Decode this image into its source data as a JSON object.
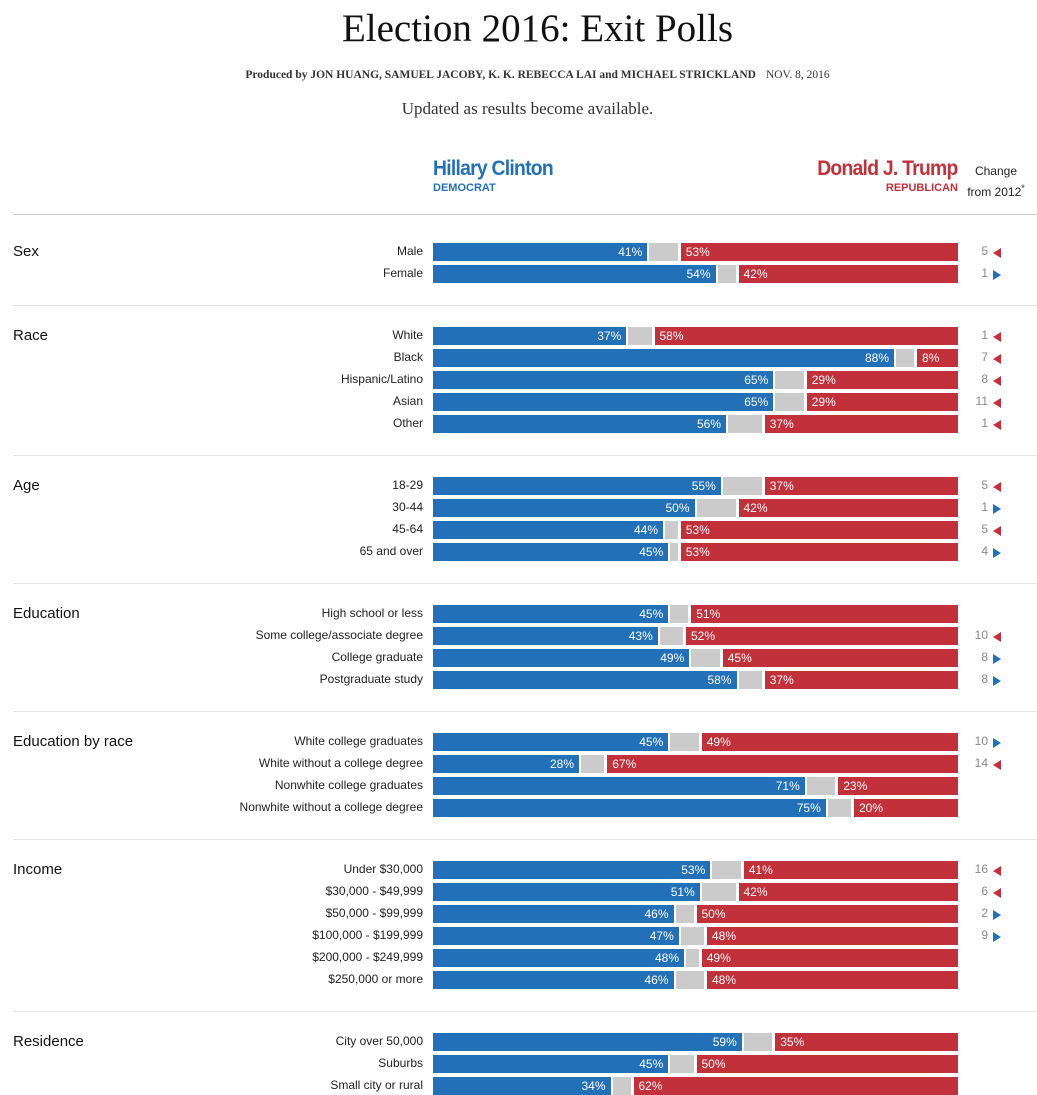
{
  "header": {
    "title": "Election 2016: Exit Polls",
    "byline": "Produced by JON HUANG, SAMUEL JACOBY, K. K. REBECCA LAI and MICHAEL STRICKLAND",
    "date": "NOV. 8, 2016",
    "updated": "Updated as results become available."
  },
  "candidates": {
    "dem_name": "Hillary Clinton",
    "dem_party": "DEMOCRAT",
    "rep_name": "Donald J. Trump",
    "rep_party": "REPUBLICAN",
    "change_line1": "Change",
    "change_line2": "from 2012",
    "change_mark": "*"
  },
  "colors": {
    "democrat": "#2270b8",
    "republican": "#c2303a",
    "other": "#cbcbcb"
  },
  "chart_data": {
    "type": "bar",
    "stacked": true,
    "series_colors": {
      "democrat": "#2270b8",
      "other": "#cbcbcb",
      "republican": "#c2303a"
    },
    "change_direction_legend": {
      "left": "toward Republican (red left arrow)",
      "right": "toward Democrat (blue right arrow)"
    },
    "sections": [
      {
        "title": "Sex",
        "rows": [
          {
            "label": "Male",
            "dem": 41,
            "rep": 53,
            "change": 5,
            "dir": "left"
          },
          {
            "label": "Female",
            "dem": 54,
            "rep": 42,
            "change": 1,
            "dir": "right"
          }
        ]
      },
      {
        "title": "Race",
        "rows": [
          {
            "label": "White",
            "dem": 37,
            "rep": 58,
            "change": 1,
            "dir": "left"
          },
          {
            "label": "Black",
            "dem": 88,
            "rep": 8,
            "change": 7,
            "dir": "left"
          },
          {
            "label": "Hispanic/Latino",
            "dem": 65,
            "rep": 29,
            "change": 8,
            "dir": "left"
          },
          {
            "label": "Asian",
            "dem": 65,
            "rep": 29,
            "change": 11,
            "dir": "left"
          },
          {
            "label": "Other",
            "dem": 56,
            "rep": 37,
            "change": 1,
            "dir": "left"
          }
        ]
      },
      {
        "title": "Age",
        "rows": [
          {
            "label": "18-29",
            "dem": 55,
            "rep": 37,
            "change": 5,
            "dir": "left"
          },
          {
            "label": "30-44",
            "dem": 50,
            "rep": 42,
            "change": 1,
            "dir": "right"
          },
          {
            "label": "45-64",
            "dem": 44,
            "rep": 53,
            "change": 5,
            "dir": "left"
          },
          {
            "label": "65 and over",
            "dem": 45,
            "rep": 53,
            "change": 4,
            "dir": "right"
          }
        ]
      },
      {
        "title": "Education",
        "rows": [
          {
            "label": "High school or less",
            "dem": 45,
            "rep": 51,
            "change": null,
            "dir": null
          },
          {
            "label": "Some college/associate degree",
            "dem": 43,
            "rep": 52,
            "change": 10,
            "dir": "left"
          },
          {
            "label": "College graduate",
            "dem": 49,
            "rep": 45,
            "change": 8,
            "dir": "right"
          },
          {
            "label": "Postgraduate study",
            "dem": 58,
            "rep": 37,
            "change": 8,
            "dir": "right"
          }
        ]
      },
      {
        "title": "Education by race",
        "rows": [
          {
            "label": "White college graduates",
            "dem": 45,
            "rep": 49,
            "change": 10,
            "dir": "right"
          },
          {
            "label": "White without a college degree",
            "dem": 28,
            "rep": 67,
            "change": 14,
            "dir": "left"
          },
          {
            "label": "Nonwhite college graduates",
            "dem": 71,
            "rep": 23,
            "change": null,
            "dir": null
          },
          {
            "label": "Nonwhite without a college degree",
            "dem": 75,
            "rep": 20,
            "change": null,
            "dir": null
          }
        ]
      },
      {
        "title": "Income",
        "rows": [
          {
            "label": "Under $30,000",
            "dem": 53,
            "rep": 41,
            "change": 16,
            "dir": "left"
          },
          {
            "label": "$30,000 - $49,999",
            "dem": 51,
            "rep": 42,
            "change": 6,
            "dir": "left"
          },
          {
            "label": "$50,000 - $99,999",
            "dem": 46,
            "rep": 50,
            "change": 2,
            "dir": "right"
          },
          {
            "label": "$100,000 - $199,999",
            "dem": 47,
            "rep": 48,
            "change": 9,
            "dir": "right"
          },
          {
            "label": "$200,000 - $249,999",
            "dem": 48,
            "rep": 49,
            "change": null,
            "dir": null
          },
          {
            "label": "$250,000 or more",
            "dem": 46,
            "rep": 48,
            "change": null,
            "dir": null
          }
        ]
      },
      {
        "title": "Residence",
        "rows": [
          {
            "label": "City over 50,000",
            "dem": 59,
            "rep": 35,
            "change": null,
            "dir": null
          },
          {
            "label": "Suburbs",
            "dem": 45,
            "rep": 50,
            "change": null,
            "dir": null
          },
          {
            "label": "Small city or rural",
            "dem": 34,
            "rep": 62,
            "change": null,
            "dir": null
          }
        ]
      }
    ]
  }
}
